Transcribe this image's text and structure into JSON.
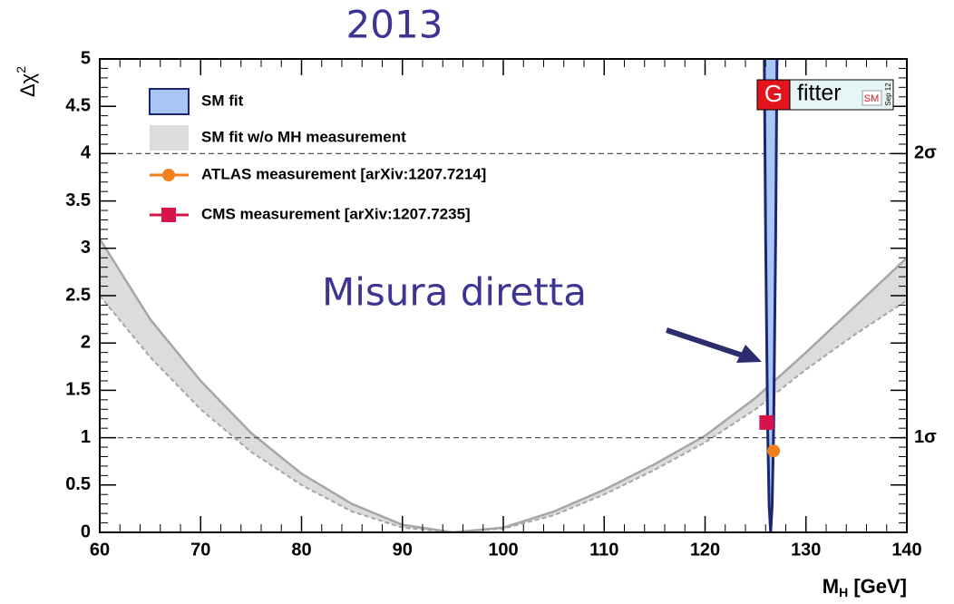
{
  "chart_data": {
    "type": "line",
    "title": "2013",
    "annotation": "Misura diretta",
    "xlabel": {
      "text": "M",
      "sub": "H",
      "rest": " [GeV]"
    },
    "ylabel": {
      "text": "Δχ",
      "sup": "2"
    },
    "xlim": [
      60,
      140
    ],
    "ylim": [
      0,
      5
    ],
    "xticks": [
      60,
      70,
      80,
      90,
      100,
      110,
      120,
      130,
      140
    ],
    "yticks": [
      0,
      0.5,
      1,
      1.5,
      2,
      2.5,
      3,
      3.5,
      4,
      4.5,
      5
    ],
    "sigma_lines": [
      {
        "value": 4,
        "label": "2σ"
      },
      {
        "value": 1,
        "label": "1σ"
      }
    ],
    "logo": {
      "main": "G",
      "text": "fitter",
      "sub": "SM",
      "date": "Sep 12"
    },
    "series": [
      {
        "name": "SM fit",
        "type": "band_curve",
        "color": "#a9c6f5",
        "line_color": "#1c2570",
        "x": [
          125.87,
          126.0,
          126.2,
          126.35,
          126.5,
          126.65,
          126.8,
          127.0,
          127.13
        ],
        "values": [
          5.0,
          3.14,
          1.13,
          0.28,
          0,
          0.28,
          1.13,
          3.14,
          5.0
        ]
      },
      {
        "name": "SM fit w/o MH measurement",
        "type": "band",
        "color": "#dcdcdc",
        "line_color": "#a6a6a6",
        "x": [
          60,
          65,
          70,
          75,
          80,
          85,
          90,
          95,
          100,
          105,
          110,
          115,
          120,
          125,
          130,
          135,
          140
        ],
        "upper": [
          3.1,
          2.25,
          1.6,
          1.05,
          0.62,
          0.3,
          0.08,
          0.0,
          0.05,
          0.22,
          0.45,
          0.72,
          1.02,
          1.42,
          1.9,
          2.4,
          2.9
        ],
        "lower": [
          2.5,
          1.85,
          1.3,
          0.85,
          0.5,
          0.22,
          0.05,
          0.0,
          0.04,
          0.18,
          0.4,
          0.66,
          0.95,
          1.3,
          1.72,
          2.1,
          2.45
        ]
      },
      {
        "name": "ATLAS measurement [arXiv:1207.7214]",
        "type": "point",
        "marker": "circle",
        "color": "#f07f1c",
        "x": [
          126.8
        ],
        "values": [
          0.86
        ]
      },
      {
        "name": "CMS measurement [arXiv:1207.7235]",
        "type": "point",
        "marker": "square",
        "color": "#d6134a",
        "x": [
          126.1
        ],
        "values": [
          1.16
        ]
      }
    ]
  }
}
